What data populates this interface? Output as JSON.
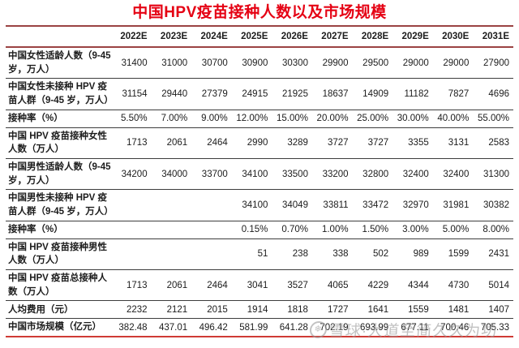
{
  "title": "中国HPV疫苗接种人数以及市场规模",
  "watermark": {
    "logo_glyph": "❄",
    "text": "雪球·大道至简久久为功"
  },
  "colors": {
    "title_red": "#e50113",
    "header_rule": "#9b4343",
    "row_rule": "#3d3d3d",
    "bottom_rule": "#cf3b35",
    "watermark_gray": "#9a9a9a"
  },
  "chart_data": {
    "type": "table",
    "title": "中国HPV疫苗接种人数以及市场规模",
    "columns": [
      "2022E",
      "2023E",
      "2024E",
      "2025E",
      "2026E",
      "2027E",
      "2028E",
      "2029E",
      "2030E",
      "2031E"
    ],
    "rows": [
      {
        "label": "中国女性适龄人数（9-45岁，万人）",
        "tall": true,
        "values": [
          "31400",
          "31000",
          "30700",
          "30900",
          "30300",
          "29900",
          "29500",
          "29000",
          "29000",
          "27900"
        ]
      },
      {
        "label": "中国女性未接种 HPV 疫苗人群（9-45 岁，万人）",
        "tall": true,
        "values": [
          "31154",
          "29440",
          "27379",
          "24915",
          "21925",
          "18637",
          "14909",
          "11182",
          "7827",
          "4696"
        ]
      },
      {
        "label": "接种率（%）",
        "tall": false,
        "values": [
          "5.50%",
          "7.00%",
          "9.00%",
          "12.00%",
          "15.00%",
          "20.00%",
          "25.00%",
          "30.00%",
          "40.00%",
          "55.00%"
        ]
      },
      {
        "label": "中国 HPV 疫苗接种女性人数（万人）",
        "tall": true,
        "values": [
          "1713",
          "2061",
          "2464",
          "2990",
          "3289",
          "3727",
          "3727",
          "3355",
          "3131",
          "2583"
        ]
      },
      {
        "label": "中国男性适龄人数（9-45岁，万人）",
        "tall": true,
        "values": [
          "34200",
          "34000",
          "33700",
          "34100",
          "33500",
          "33200",
          "32800",
          "32400",
          "32400",
          "31300"
        ]
      },
      {
        "label": "中国男性未接种 HPV 疫苗人群（9-45 岁，万人）",
        "tall": true,
        "values": [
          "",
          "",
          "",
          "34100",
          "34049",
          "33811",
          "33472",
          "32970",
          "31981",
          "30382"
        ]
      },
      {
        "label": "接种率（%）",
        "tall": false,
        "values": [
          "",
          "",
          "",
          "0.15%",
          "0.70%",
          "1.00%",
          "1.50%",
          "3.00%",
          "5.00%",
          "8.00%"
        ]
      },
      {
        "label": "中国 HPV 疫苗接种男性人数（万人）",
        "tall": true,
        "values": [
          "",
          "",
          "",
          "51",
          "238",
          "338",
          "502",
          "989",
          "1599",
          "2431"
        ]
      },
      {
        "label": "中国 HPV 疫苗总接种人数（万人）",
        "tall": true,
        "values": [
          "1713",
          "2061",
          "2464",
          "3041",
          "3527",
          "4065",
          "4229",
          "4344",
          "4730",
          "5014"
        ]
      },
      {
        "label": "人均费用（元）",
        "tall": false,
        "values": [
          "2232",
          "2121",
          "2015",
          "1914",
          "1818",
          "1727",
          "1641",
          "1559",
          "1481",
          "1407"
        ]
      },
      {
        "label": "中国市场规模（亿元）",
        "tall": false,
        "values": [
          "382.48",
          "437.01",
          "496.42",
          "581.99",
          "641.28",
          "702.19",
          "693.99",
          "677.11",
          "700.46",
          "705.33"
        ]
      }
    ]
  }
}
